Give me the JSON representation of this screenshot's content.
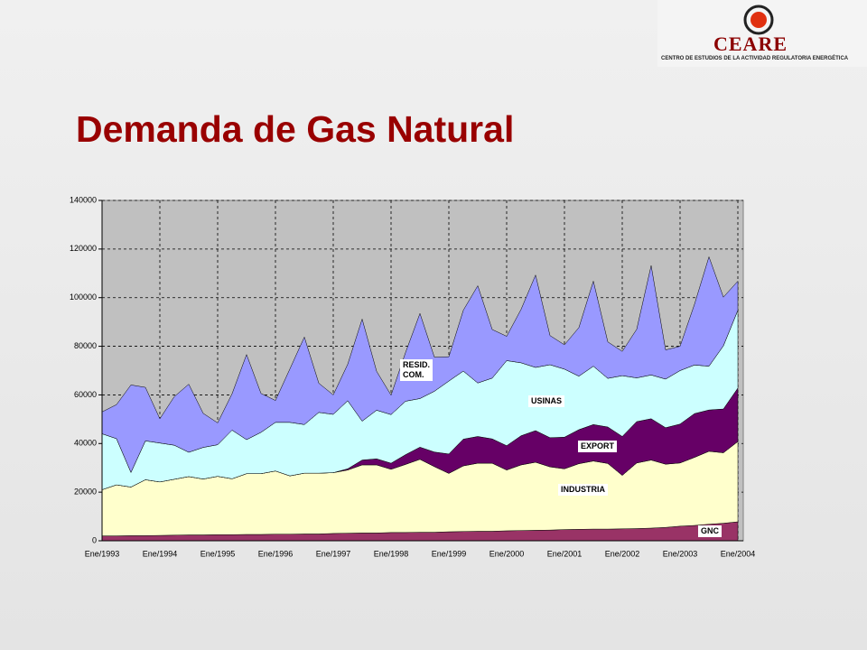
{
  "logo": {
    "name": "CEARE",
    "subtitle": "CENTRO DE ESTUDIOS DE LA ACTIVIDAD REGULATORIA ENERGÉTICA"
  },
  "title": "Demanda de Gas Natural",
  "chart_data": {
    "type": "stacked_area",
    "categories": [
      "Ene/1993",
      null,
      null,
      null,
      "Ene/1994",
      null,
      null,
      null,
      "Ene/1995",
      null,
      null,
      null,
      "Ene/1996",
      null,
      null,
      null,
      "Ene/1997",
      null,
      null,
      null,
      "Ene/1998",
      null,
      null,
      null,
      "Ene/1999",
      null,
      null,
      null,
      "Ene/2000",
      null,
      null,
      null,
      "Ene/2001",
      null,
      null,
      null,
      "Ene/2002",
      null,
      null,
      null,
      "Ene/2003",
      null,
      null,
      null,
      "Ene/2004"
    ],
    "series": [
      {
        "name": "GNC",
        "color": "#993366",
        "values": [
          2000,
          2000,
          2100,
          2100,
          2200,
          2300,
          2400,
          2400,
          2500,
          2500,
          2600,
          2600,
          2700,
          2700,
          2800,
          2800,
          3000,
          3100,
          3200,
          3200,
          3400,
          3400,
          3500,
          3500,
          3700,
          3800,
          3900,
          3900,
          4100,
          4200,
          4300,
          4400,
          4600,
          4700,
          4800,
          4800,
          4900,
          5000,
          5200,
          5500,
          6000,
          6300,
          6800,
          7200,
          7800
        ]
      },
      {
        "name": "INDUSTRIA",
        "color": "#ffffcc",
        "values": [
          19000,
          21000,
          20000,
          23000,
          22000,
          23000,
          24000,
          23000,
          24000,
          23000,
          25000,
          25000,
          26000,
          24000,
          25000,
          25000,
          25000,
          26000,
          28000,
          28000,
          26000,
          28000,
          30000,
          27000,
          24000,
          27000,
          28000,
          28000,
          25000,
          27000,
          28000,
          26000,
          25000,
          27000,
          28000,
          27000,
          22000,
          27000,
          28000,
          26000,
          26000,
          28000,
          30000,
          29000,
          33000
        ]
      },
      {
        "name": "EXPORT",
        "color": "#660066",
        "values": [
          0,
          0,
          0,
          0,
          0,
          0,
          0,
          0,
          0,
          0,
          0,
          0,
          0,
          0,
          0,
          0,
          0,
          500,
          2000,
          2500,
          2500,
          4000,
          5000,
          6000,
          8000,
          11000,
          11000,
          10000,
          10000,
          12000,
          13000,
          12000,
          13000,
          14000,
          15000,
          15000,
          16000,
          17000,
          17000,
          15000,
          16000,
          18000,
          17000,
          18000,
          22000
        ]
      },
      {
        "name": "USINAS",
        "color": "#ccffff",
        "values": [
          23000,
          19000,
          6000,
          16000,
          16000,
          14000,
          10000,
          13000,
          13000,
          20000,
          14000,
          17000,
          20000,
          22000,
          20000,
          25000,
          24000,
          28000,
          16000,
          20000,
          20000,
          22000,
          20000,
          25000,
          30000,
          28000,
          22000,
          25000,
          35000,
          30000,
          26000,
          30000,
          28000,
          22000,
          24000,
          20000,
          25000,
          18000,
          18000,
          20000,
          22000,
          20000,
          18000,
          26000,
          32000
        ]
      },
      {
        "name": "RESID. COM.",
        "color": "#9999ff",
        "values": [
          9000,
          14000,
          36000,
          22000,
          10000,
          20000,
          28000,
          14000,
          9000,
          15000,
          35000,
          16000,
          9000,
          22000,
          36000,
          12000,
          8000,
          15000,
          42000,
          16000,
          8000,
          20000,
          35000,
          14000,
          10000,
          25000,
          40000,
          20000,
          10000,
          22000,
          38000,
          12000,
          10000,
          20000,
          35000,
          15000,
          10000,
          20000,
          45000,
          12000,
          10000,
          25000,
          45000,
          20000,
          12000
        ]
      }
    ],
    "ylim": [
      0,
      140000
    ],
    "yticks": [
      0,
      20000,
      40000,
      60000,
      80000,
      100000,
      120000,
      140000
    ],
    "grid": true,
    "background": "#c0c0c0"
  }
}
